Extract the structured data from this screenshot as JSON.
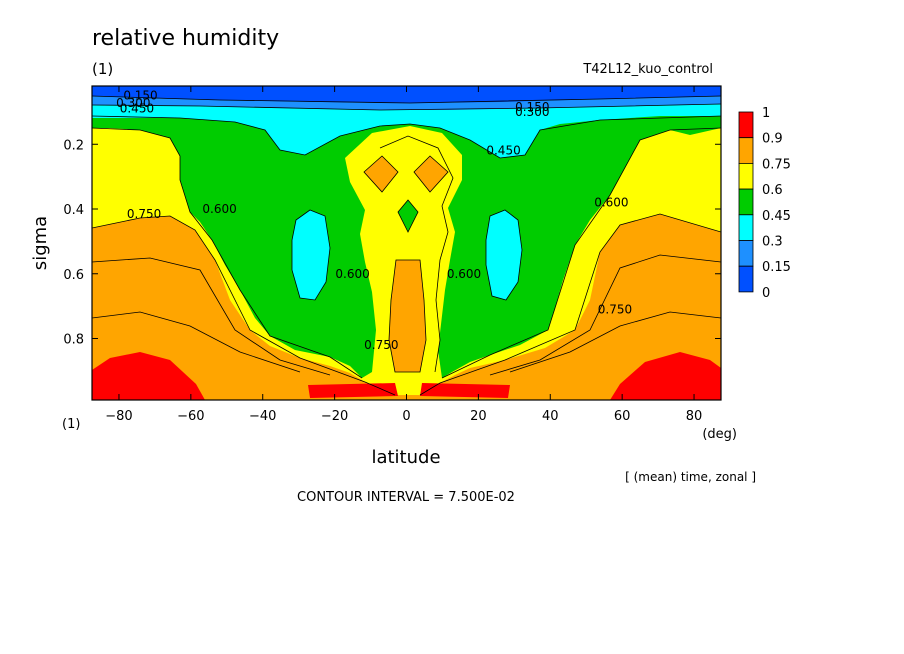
{
  "title": "relative humidity",
  "subtitle_left": "(1)",
  "subtitle_right": "T42L12_kuo_control",
  "x_corner_label": "(1)",
  "x_unit": "(deg)",
  "footnote": "[ (mean) time, zonal ]",
  "contour_note": "CONTOUR INTERVAL = 7.500E-02",
  "colors": {
    "red": "#ff0000",
    "orange": "#ffa500",
    "yellow": "#ffff00",
    "green": "#00cc00",
    "cyan": "#00ffff",
    "blue_mid": "#1e90ff",
    "blue_dark": "#0050ff"
  },
  "chart_data": {
    "type": "heatmap",
    "subtype": "filled contour (latitude-sigma cross section)",
    "title": "relative humidity",
    "xlabel": "latitude",
    "ylabel": "sigma",
    "xlim": [
      -87.5,
      87.5
    ],
    "ylim": [
      0.02,
      0.99
    ],
    "y_inverted": true,
    "x_ticks": [
      -80,
      -60,
      -40,
      -20,
      0,
      20,
      40,
      60,
      80
    ],
    "y_ticks": [
      0.2,
      0.4,
      0.6,
      0.8
    ],
    "contour_interval": 0.075,
    "colorbar": {
      "levels": [
        "1",
        "0.9",
        "0.75",
        "0.6",
        "0.45",
        "0.3",
        "0.15",
        "0"
      ],
      "colors": [
        "#ff0000",
        "#ffa500",
        "#ffff00",
        "#00cc00",
        "#00ffff",
        "#1e90ff",
        "#0050ff"
      ]
    },
    "contour_labels": [
      {
        "text": "0.150",
        "lat": -74,
        "sigma": 0.05
      },
      {
        "text": "0.300",
        "lat": -76,
        "sigma": 0.072
      },
      {
        "text": "0.450",
        "lat": -75,
        "sigma": 0.09
      },
      {
        "text": "0.150",
        "lat": 35,
        "sigma": 0.085
      },
      {
        "text": "0.300",
        "lat": 35,
        "sigma": 0.1
      },
      {
        "text": "0.450",
        "lat": 27,
        "sigma": 0.22
      },
      {
        "text": "0.750",
        "lat": -73,
        "sigma": 0.415
      },
      {
        "text": "0.600",
        "lat": -52,
        "sigma": 0.4
      },
      {
        "text": "0.600",
        "lat": 57,
        "sigma": 0.38
      },
      {
        "text": "0.600",
        "lat": -15,
        "sigma": 0.6
      },
      {
        "text": "0.600",
        "lat": 16,
        "sigma": 0.6
      },
      {
        "text": "0.750",
        "lat": -7,
        "sigma": 0.82
      },
      {
        "text": "0.750",
        "lat": 58,
        "sigma": 0.71
      }
    ]
  }
}
